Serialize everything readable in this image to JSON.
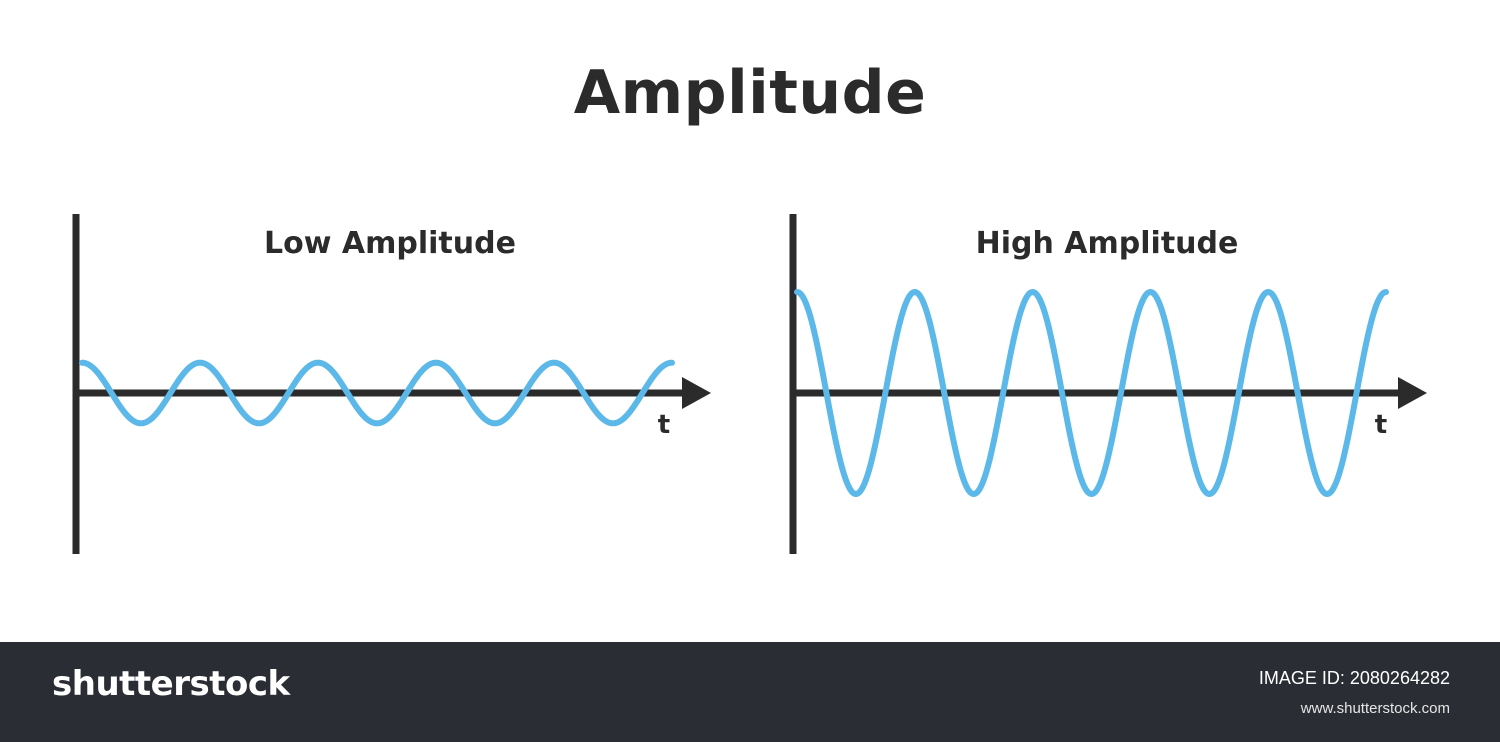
{
  "title": "Amplitude",
  "panels": [
    {
      "title": "Low Amplitude",
      "x_axis_label": "t",
      "amplitude": 0.3,
      "cycles": 5,
      "start_phase": "peak"
    },
    {
      "title": "High Amplitude",
      "x_axis_label": "t",
      "amplitude": 1.0,
      "cycles": 5,
      "start_phase": "peak"
    }
  ],
  "colors": {
    "wave": "#5bb8e8",
    "axis": "#2b2b2b",
    "text": "#2b2b2b",
    "footer": "#2a2d33"
  },
  "footer": {
    "brand": "shutterstock",
    "image_id": "IMAGE ID: 2080264282",
    "url": "www.shutterstock.com"
  }
}
